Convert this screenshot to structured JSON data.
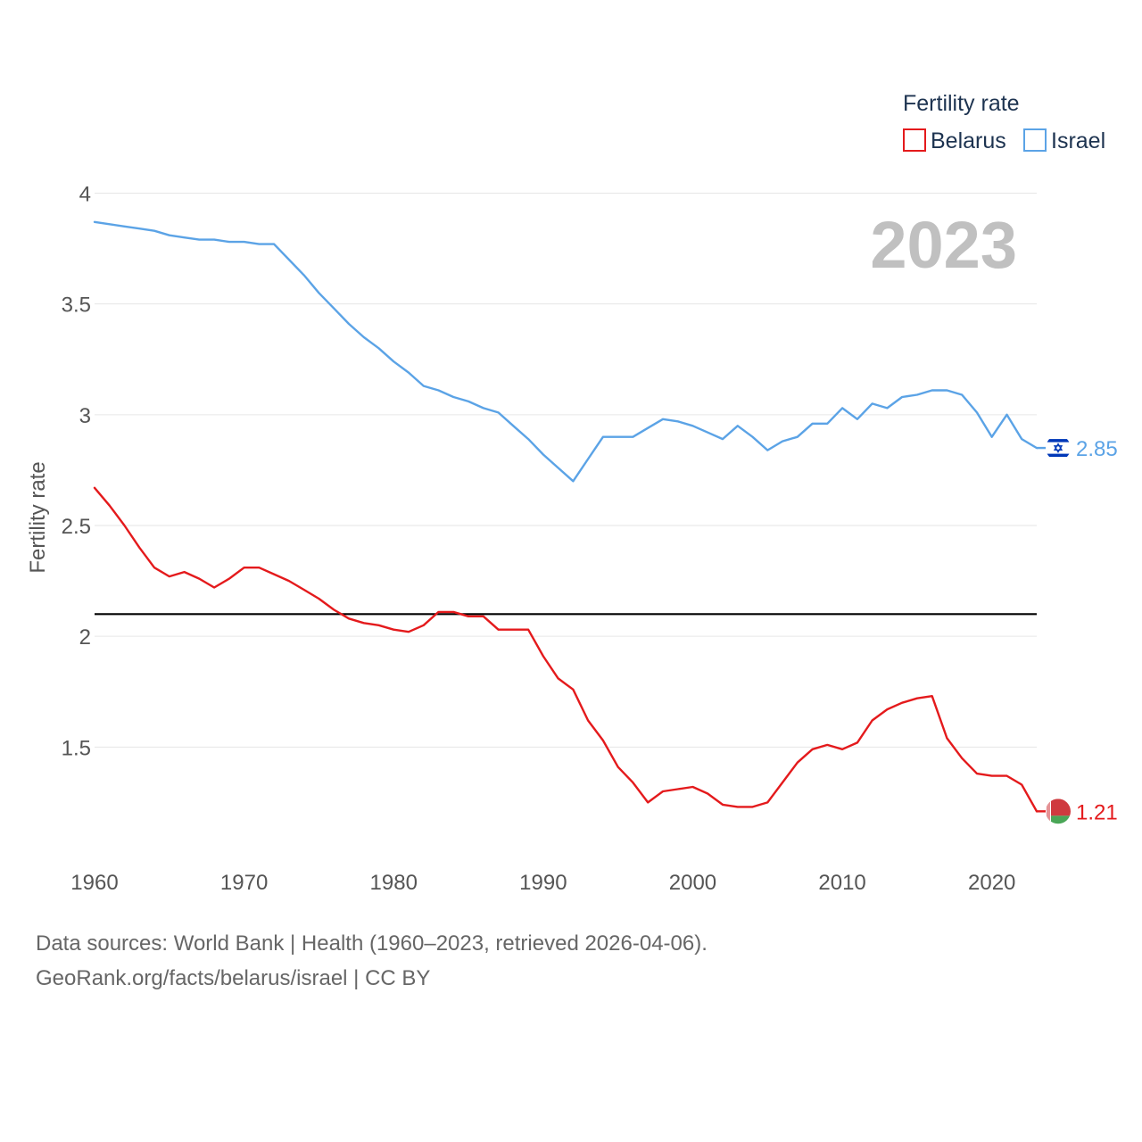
{
  "chart_data": {
    "type": "line",
    "ylabel": "Fertility rate",
    "xlabel": "",
    "xlim": [
      1960,
      2023
    ],
    "ylim": [
      1.0,
      4.0
    ],
    "x_ticks": [
      1960,
      1970,
      1980,
      1990,
      2000,
      2010,
      2020
    ],
    "y_ticks": [
      1.5,
      2,
      2.5,
      3,
      3.5,
      4
    ],
    "y_tick_labels": [
      "1.5",
      "2",
      "2.5",
      "3",
      "3.5",
      "4"
    ],
    "grid": true,
    "reference_line": {
      "y": 2.1,
      "color": "#000000"
    },
    "year_display": "2023",
    "legend": {
      "title": "Fertility rate",
      "placement": "top-right"
    },
    "x": [
      1960,
      1961,
      1962,
      1963,
      1964,
      1965,
      1966,
      1967,
      1968,
      1969,
      1970,
      1971,
      1972,
      1973,
      1974,
      1975,
      1976,
      1977,
      1978,
      1979,
      1980,
      1981,
      1982,
      1983,
      1984,
      1985,
      1986,
      1987,
      1988,
      1989,
      1990,
      1991,
      1992,
      1993,
      1994,
      1995,
      1996,
      1997,
      1998,
      1999,
      2000,
      2001,
      2002,
      2003,
      2004,
      2005,
      2006,
      2007,
      2008,
      2009,
      2010,
      2011,
      2012,
      2013,
      2014,
      2015,
      2016,
      2017,
      2018,
      2019,
      2020,
      2021,
      2022,
      2023
    ],
    "series": [
      {
        "name": "Belarus",
        "color": "#e41a1c",
        "end_label": "1.21",
        "flag_icon": "belarus-flag-icon",
        "values": [
          2.67,
          2.59,
          2.5,
          2.4,
          2.31,
          2.27,
          2.29,
          2.26,
          2.22,
          2.26,
          2.31,
          2.31,
          2.28,
          2.25,
          2.21,
          2.17,
          2.12,
          2.08,
          2.06,
          2.05,
          2.03,
          2.02,
          2.05,
          2.11,
          2.11,
          2.09,
          2.09,
          2.03,
          2.03,
          2.03,
          1.91,
          1.81,
          1.76,
          1.62,
          1.53,
          1.41,
          1.34,
          1.25,
          1.3,
          1.31,
          1.32,
          1.29,
          1.24,
          1.23,
          1.23,
          1.25,
          1.34,
          1.43,
          1.49,
          1.51,
          1.49,
          1.52,
          1.62,
          1.67,
          1.7,
          1.72,
          1.73,
          1.54,
          1.45,
          1.38,
          1.37,
          1.37,
          1.33,
          1.21
        ]
      },
      {
        "name": "Israel",
        "color": "#5ba3e6",
        "end_label": "2.85",
        "flag_icon": "israel-flag-icon",
        "values": [
          3.87,
          3.86,
          3.85,
          3.84,
          3.83,
          3.81,
          3.8,
          3.79,
          3.79,
          3.78,
          3.78,
          3.77,
          3.77,
          3.7,
          3.63,
          3.55,
          3.48,
          3.41,
          3.35,
          3.3,
          3.24,
          3.19,
          3.13,
          3.11,
          3.08,
          3.06,
          3.03,
          3.01,
          2.95,
          2.89,
          2.82,
          2.76,
          2.7,
          2.8,
          2.9,
          2.9,
          2.9,
          2.94,
          2.98,
          2.97,
          2.95,
          2.92,
          2.89,
          2.95,
          2.9,
          2.84,
          2.88,
          2.9,
          2.96,
          2.96,
          3.03,
          2.98,
          3.05,
          3.03,
          3.08,
          3.09,
          3.11,
          3.11,
          3.09,
          3.01,
          2.9,
          3.0,
          2.89,
          2.85
        ]
      }
    ]
  },
  "footer": {
    "sources": "Data sources: World Bank | Health (1960–2023, retrieved 2026-04-06).",
    "attribution": "GeoRank.org/facts/belarus/israel | CC BY"
  }
}
